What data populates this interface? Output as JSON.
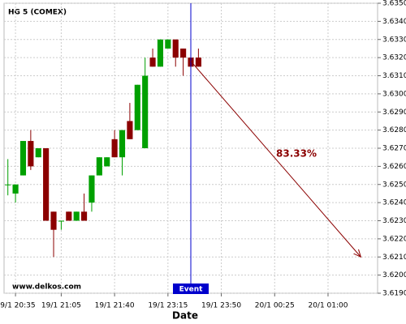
{
  "chart_data": {
    "type": "candlestick",
    "title": "HG 5 (COMEX)",
    "watermark": "www.delkos.com",
    "xlabel": "Date",
    "x": [
      0,
      1,
      2,
      3,
      4,
      5,
      6,
      7,
      8,
      9,
      10,
      11,
      12,
      13,
      14,
      15,
      16,
      17,
      18,
      19,
      20,
      21,
      22,
      23,
      24,
      25
    ],
    "open": [
      3.625,
      3.6245,
      3.6255,
      3.6274,
      3.6265,
      3.627,
      3.6235,
      3.623,
      3.6235,
      3.623,
      3.6235,
      3.624,
      3.6255,
      3.626,
      3.6275,
      3.6265,
      3.6285,
      3.628,
      3.627,
      3.632,
      3.6315,
      3.6325,
      3.633,
      3.6325,
      3.632,
      3.632
    ],
    "high": [
      3.6264,
      3.625,
      3.6274,
      3.628,
      3.627,
      3.627,
      3.6235,
      3.623,
      3.6235,
      3.6235,
      3.6245,
      3.6255,
      3.6265,
      3.6265,
      3.628,
      3.628,
      3.6295,
      3.6305,
      3.632,
      3.6325,
      3.633,
      3.633,
      3.633,
      3.6325,
      3.6323,
      3.6325
    ],
    "low": [
      3.6244,
      3.624,
      3.6255,
      3.6258,
      3.6265,
      3.623,
      3.621,
      3.6225,
      3.623,
      3.623,
      3.623,
      3.6235,
      3.6255,
      3.626,
      3.6265,
      3.6255,
      3.6275,
      3.628,
      3.627,
      3.6315,
      3.6315,
      3.6325,
      3.6315,
      3.631,
      3.6315,
      3.6315
    ],
    "close": [
      3.625,
      3.625,
      3.6274,
      3.626,
      3.627,
      3.623,
      3.6225,
      3.623,
      3.623,
      3.6235,
      3.623,
      3.6255,
      3.6265,
      3.6265,
      3.6265,
      3.628,
      3.6275,
      3.6305,
      3.631,
      3.6315,
      3.633,
      3.633,
      3.632,
      3.632,
      3.6315,
      3.6315
    ],
    "up_color": "#00a000",
    "down_color": "#8b0000",
    "xlim": [
      -0.5,
      48.5
    ],
    "xticks": [
      {
        "value": 1,
        "label": "19/1 20:35"
      },
      {
        "value": 7,
        "label": "19/1 21:05"
      },
      {
        "value": 14,
        "label": "19/1 21:40"
      },
      {
        "value": 21,
        "label": "19/1 23:15"
      },
      {
        "value": 28,
        "label": "19/1 23:50"
      },
      {
        "value": 35,
        "label": "20/1 00:25"
      },
      {
        "value": 42,
        "label": "20/1 01:00"
      }
    ],
    "ylim": [
      3.619,
      3.635
    ],
    "yticks": [
      {
        "value": 3.635,
        "label": "3.6350"
      },
      {
        "value": 3.634,
        "label": "3.6340"
      },
      {
        "value": 3.633,
        "label": "3.6330"
      },
      {
        "value": 3.632,
        "label": "3.6320"
      },
      {
        "value": 3.631,
        "label": "3.6310"
      },
      {
        "value": 3.63,
        "label": "3.6300"
      },
      {
        "value": 3.629,
        "label": "3.6290"
      },
      {
        "value": 3.628,
        "label": "3.6280"
      },
      {
        "value": 3.627,
        "label": "3.6270"
      },
      {
        "value": 3.626,
        "label": "3.6260"
      },
      {
        "value": 3.625,
        "label": "3.6250"
      },
      {
        "value": 3.624,
        "label": "3.6240"
      },
      {
        "value": 3.623,
        "label": "3.6230"
      },
      {
        "value": 3.622,
        "label": "3.6220"
      },
      {
        "value": 3.621,
        "label": "3.6210"
      },
      {
        "value": 3.62,
        "label": "3.6200"
      },
      {
        "value": 3.619,
        "label": "3.6190"
      }
    ],
    "grid": true,
    "event": {
      "x": 24,
      "label": "Event",
      "color": "#0000cc"
    },
    "projection": {
      "x": [
        24,
        46.3
      ],
      "y": [
        3.6318,
        3.621
      ],
      "label": "83.33%",
      "color": "#8b0000"
    }
  }
}
